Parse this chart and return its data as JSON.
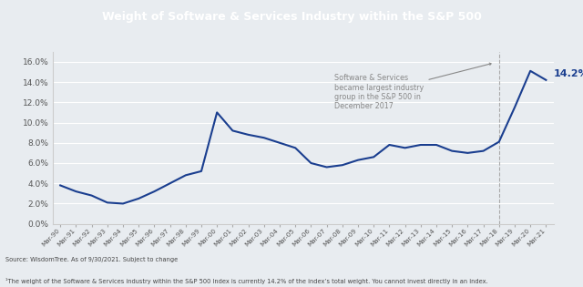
{
  "title": "Weight of Software & Services Industry within the S&P 500",
  "title_bg": "#8a9bb0",
  "line_color": "#1a3e8f",
  "annotation_text": "Software & Services\nbecame largest industry\ngroup in the S&P 500 in\nDecember 2017",
  "annotation_color": "#888888",
  "label_14_2": "14.2%",
  "label_color": "#1a3e8f",
  "vline_color": "#aaaaaa",
  "source_text": "Source: WisdomTree. As of 9/30/2021. Subject to change",
  "footnote_text": "¹The weight of the Software & Services industry within the S&P 500 Index is currently 14.2% of the index’s total weight. You cannot invest directly in an index.",
  "x_labels": [
    "Mar-90",
    "Mar-91",
    "Mar-92",
    "Mar-93",
    "Mar-94",
    "Mar-95",
    "Mar-96",
    "Mar-97",
    "Mar-98",
    "Mar-99",
    "Mar-00",
    "Mar-01",
    "Mar-02",
    "Mar-03",
    "Mar-04",
    "Mar-05",
    "Mar-06",
    "Mar-07",
    "Mar-08",
    "Mar-09",
    "Mar-10",
    "Mar-11",
    "Mar-12",
    "Mar-13",
    "Mar-14",
    "Mar-15",
    "Mar-16",
    "Mar-17",
    "Mar-18",
    "Mar-19",
    "Mar-20",
    "Mar-21"
  ],
  "y_values": [
    3.8,
    3.2,
    2.8,
    2.1,
    2.0,
    2.5,
    3.2,
    4.0,
    4.8,
    5.2,
    11.0,
    9.2,
    8.8,
    8.5,
    8.0,
    7.5,
    6.0,
    5.6,
    5.8,
    6.3,
    6.6,
    7.8,
    7.5,
    7.8,
    7.8,
    7.2,
    7.0,
    7.2,
    8.1,
    11.5,
    15.1,
    14.2
  ],
  "ylim": [
    0,
    17.0
  ],
  "yticks": [
    0.0,
    2.0,
    4.0,
    6.0,
    8.0,
    10.0,
    12.0,
    14.0,
    16.0
  ],
  "fig_bg": "#e8ecf0",
  "plot_bg": "#e8ecf0",
  "title_color": "white",
  "title_fontsize": 9,
  "vline_index": 28
}
